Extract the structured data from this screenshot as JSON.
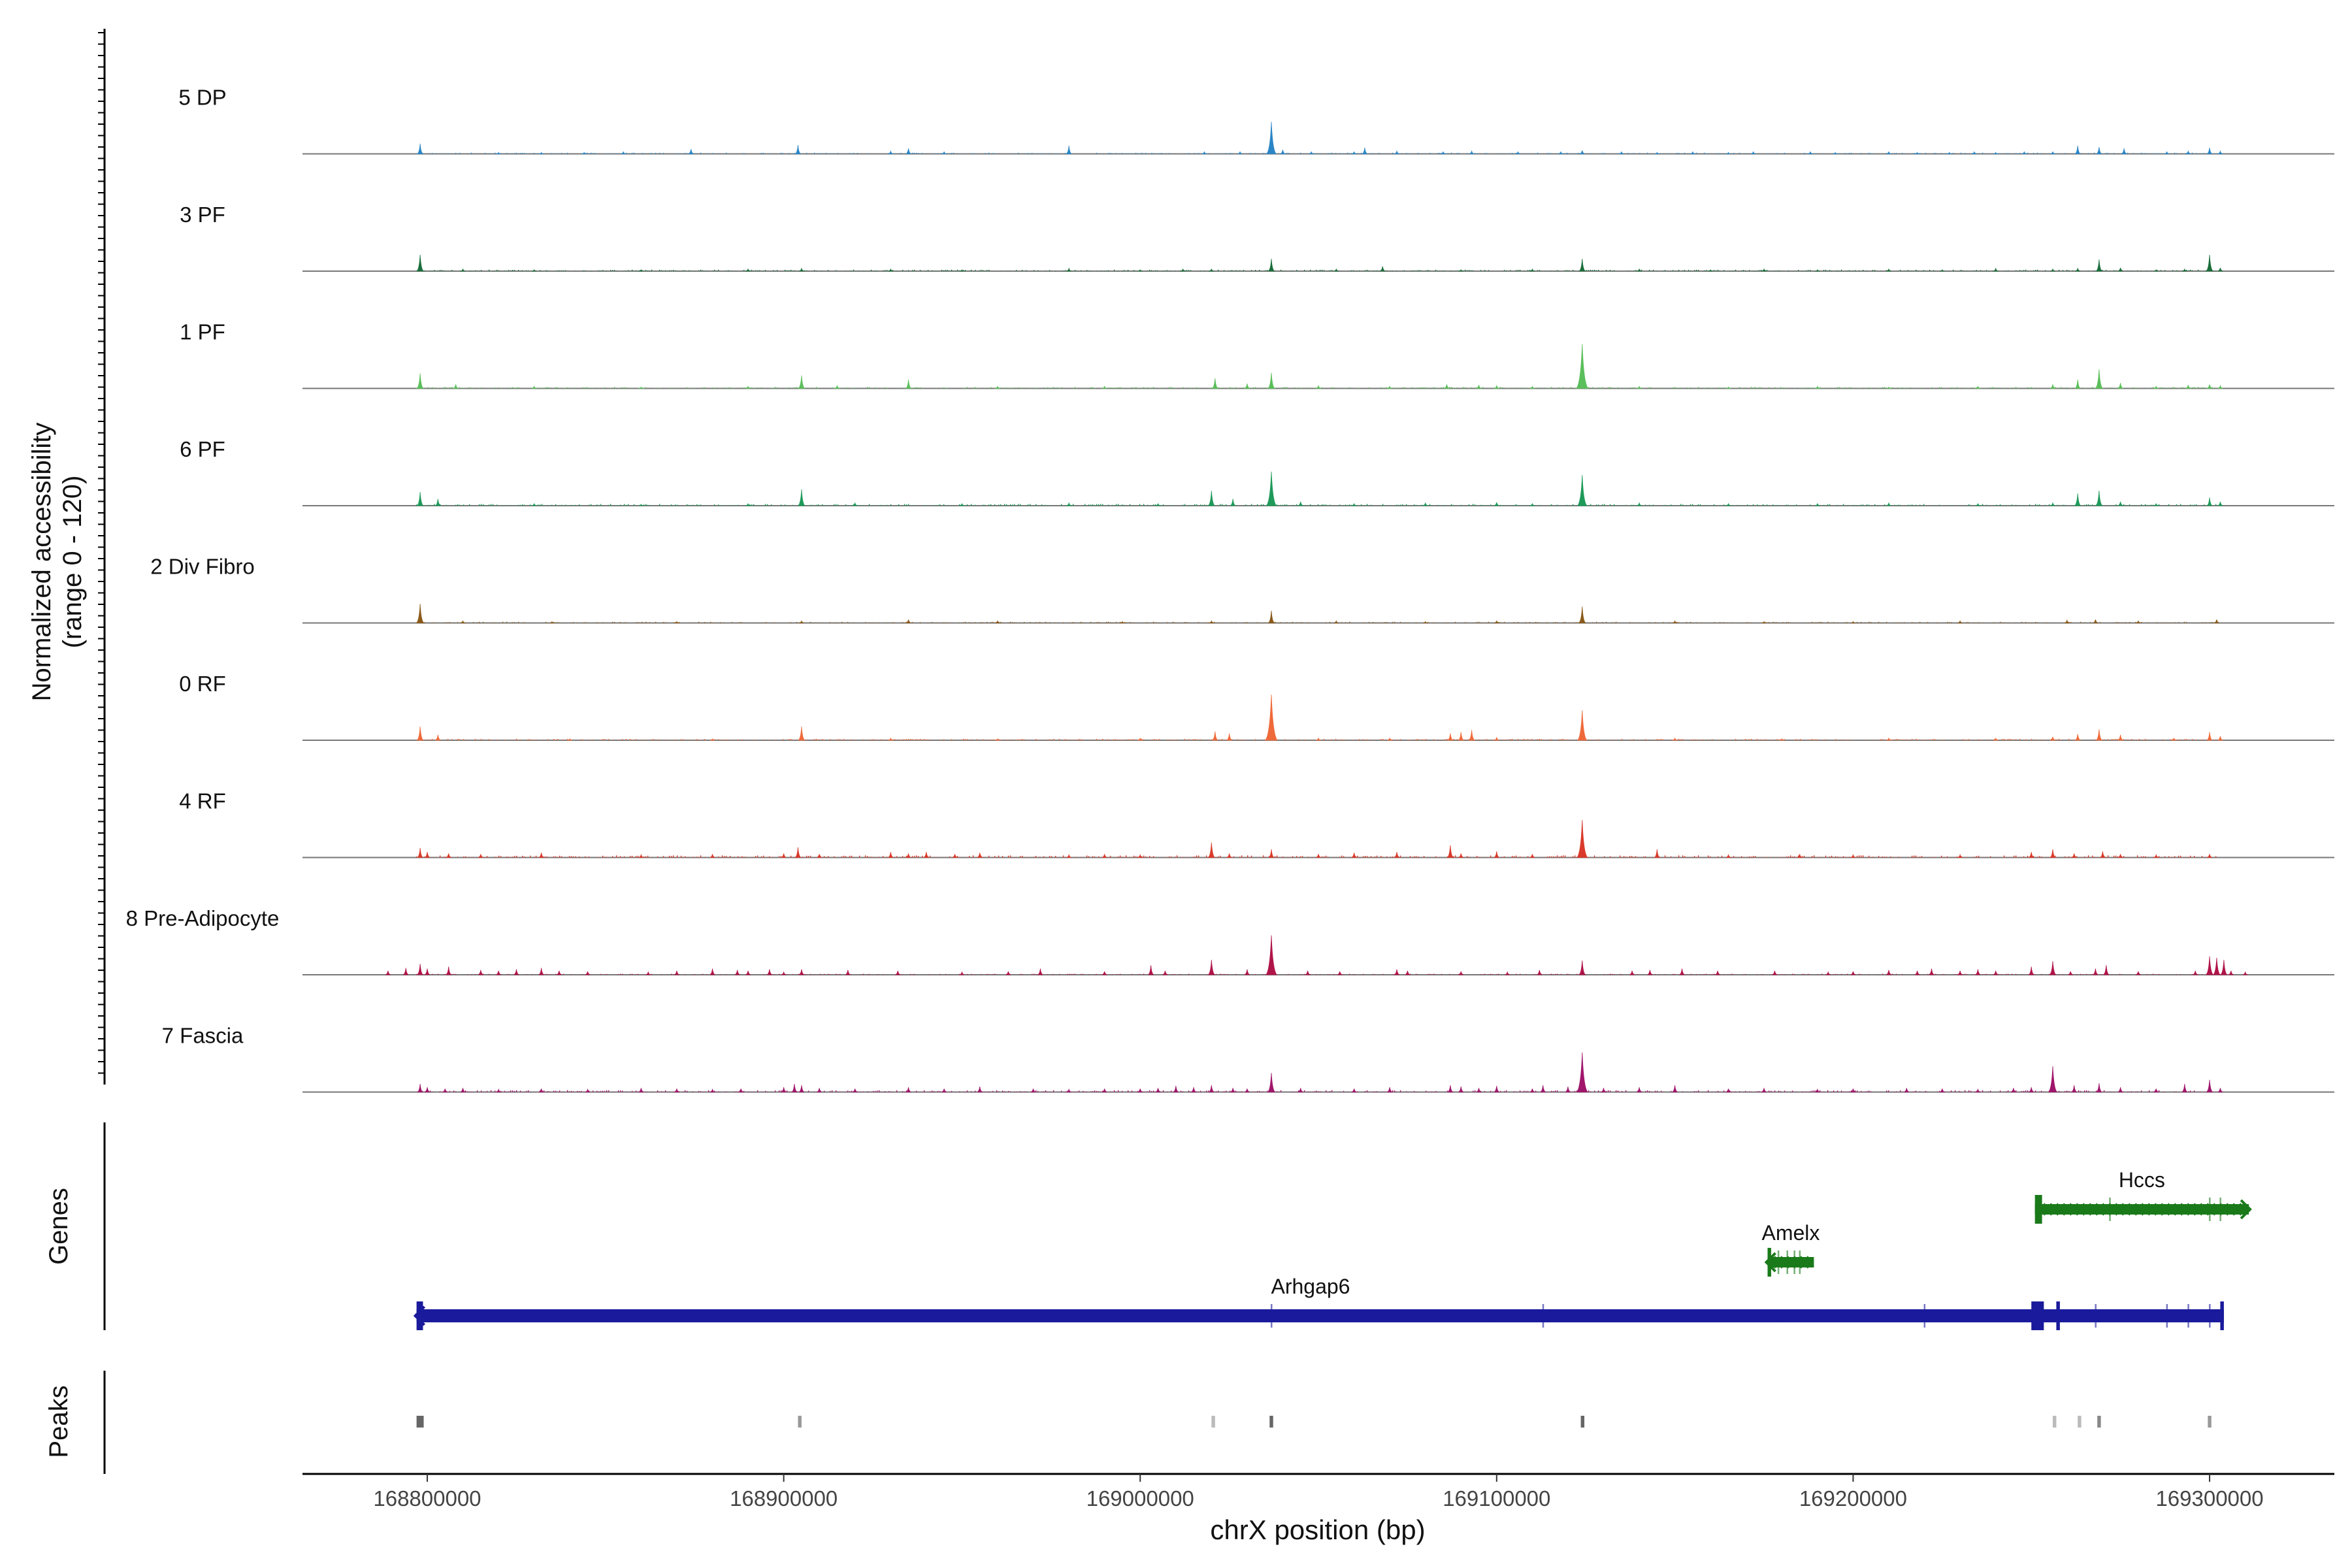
{
  "chart_data": {
    "type": "area",
    "title": "",
    "ylabel_line1": "Normalized accessibility",
    "ylabel_line2": "(range 0 - 120)",
    "xlabel": "chrX position (bp)",
    "xlim": [
      168765000,
      169335000
    ],
    "xticks": [
      168800000,
      168900000,
      169000000,
      169100000,
      169200000,
      169300000
    ],
    "xtick_labels": [
      "168800000",
      "168900000",
      "169000000",
      "169100000",
      "169200000",
      "169300000"
    ],
    "ylim": [
      0,
      120
    ],
    "data_range": [
      168797000,
      169302000
    ],
    "genes_label": "Genes",
    "peaks_label": "Peaks",
    "tracks": [
      {
        "name": "5 DP",
        "color": "#2b86c5",
        "noise": 0.8,
        "pos": [
          168798000,
          168820000,
          168832000,
          168844000,
          168855000,
          168874000,
          168904000,
          168930000,
          168935000,
          168945000,
          168980000,
          169018000,
          169028000,
          169036800,
          169040000,
          169048000,
          169060000,
          169063000,
          169072000,
          169085000,
          169093000,
          169106000,
          169118000,
          169124000,
          169135000,
          169145000,
          169155000,
          169165000,
          169172000,
          169188000,
          169195000,
          169210000,
          169218000,
          169227000,
          169234000,
          169240000,
          169248000,
          169256000,
          169263000,
          169269000,
          169276000,
          169288000,
          169294000,
          169300000,
          169303000
        ],
        "val": [
          15,
          2,
          2,
          2,
          3,
          7,
          13,
          4,
          8,
          3,
          12,
          3,
          3,
          47,
          6,
          3,
          3,
          9,
          4,
          3,
          4,
          3,
          3,
          5,
          3,
          2,
          3,
          2,
          3,
          3,
          2,
          3,
          2,
          2,
          3,
          2,
          3,
          3,
          12,
          10,
          8,
          3,
          4,
          9,
          4
        ]
      },
      {
        "name": "3 PF",
        "color": "#1b6e3b",
        "noise": 1.0,
        "pos": [
          168798000,
          168810000,
          168830000,
          168860000,
          168890000,
          168905000,
          168930000,
          168950000,
          168980000,
          169000000,
          169012000,
          169020000,
          169036800,
          169055000,
          169068000,
          169090000,
          169110000,
          169124000,
          169140000,
          169160000,
          169175000,
          169190000,
          169210000,
          169225000,
          169240000,
          169256000,
          169263000,
          169269000,
          169275000,
          169285000,
          169293000,
          169300000,
          169303000
        ],
        "val": [
          24,
          3,
          2,
          2,
          3,
          4,
          3,
          2,
          4,
          2,
          3,
          3,
          18,
          3,
          7,
          2,
          3,
          18,
          3,
          2,
          3,
          2,
          3,
          2,
          4,
          3,
          4,
          17,
          5,
          2,
          3,
          24,
          5
        ]
      },
      {
        "name": "1 PF",
        "color": "#5bbf5b",
        "noise": 1.0,
        "pos": [
          168798000,
          168808000,
          168830000,
          168860000,
          168890000,
          168905000,
          168915000,
          168935000,
          168960000,
          168990000,
          169021000,
          169030000,
          169036800,
          169050000,
          169070000,
          169086000,
          169095000,
          169100000,
          169110000,
          169124000,
          169140000,
          169165000,
          169190000,
          169210000,
          169235000,
          169256000,
          169263000,
          169269000,
          169275000,
          169285000,
          169294000,
          169300000,
          169303000
        ],
        "val": [
          22,
          6,
          3,
          2,
          3,
          19,
          4,
          13,
          3,
          3,
          15,
          7,
          23,
          4,
          3,
          6,
          5,
          4,
          3,
          65,
          3,
          2,
          3,
          2,
          3,
          6,
          13,
          28,
          8,
          3,
          5,
          6,
          4
        ]
      },
      {
        "name": "6 PF",
        "color": "#1f9a5a",
        "noise": 1.2,
        "pos": [
          168798000,
          168803000,
          168830000,
          168860000,
          168890000,
          168905000,
          168920000,
          168950000,
          168980000,
          169005000,
          169020000,
          169026000,
          169036800,
          169045000,
          169060000,
          169080000,
          169100000,
          169110000,
          169124000,
          169140000,
          169165000,
          169190000,
          169210000,
          169235000,
          169256000,
          169263000,
          169269000,
          169275000,
          169285000,
          169300000,
          169303000
        ],
        "val": [
          20,
          10,
          3,
          2,
          3,
          24,
          4,
          3,
          4,
          3,
          22,
          10,
          50,
          6,
          3,
          4,
          5,
          3,
          45,
          4,
          3,
          3,
          4,
          3,
          4,
          18,
          22,
          6,
          3,
          12,
          6
        ]
      },
      {
        "name": "2 Div Fibro",
        "color": "#8b5a1a",
        "noise": 0.8,
        "pos": [
          168798000,
          168810000,
          168835000,
          168870000,
          168905000,
          168935000,
          168960000,
          168995000,
          169020000,
          169036800,
          169055000,
          169080000,
          169100000,
          169124000,
          169150000,
          169175000,
          169200000,
          169230000,
          169260000,
          169268000,
          169280000,
          169302000
        ],
        "val": [
          28,
          3,
          2,
          2,
          3,
          5,
          3,
          2,
          3,
          18,
          3,
          2,
          3,
          24,
          3,
          2,
          2,
          3,
          4,
          5,
          3,
          5
        ]
      },
      {
        "name": "0 RF",
        "color": "#ef6a3a",
        "noise": 1.0,
        "pos": [
          168798000,
          168803000,
          168840000,
          168880000,
          168905000,
          168930000,
          168960000,
          169000000,
          169021000,
          169025000,
          169036800,
          169050000,
          169070000,
          169087000,
          169090000,
          169093000,
          169100000,
          169124000,
          169150000,
          169180000,
          169210000,
          169240000,
          169256000,
          169263000,
          169269000,
          169275000,
          169290000,
          169300000,
          169303000
        ],
        "val": [
          20,
          8,
          2,
          2,
          20,
          3,
          2,
          3,
          13,
          10,
          67,
          3,
          3,
          10,
          12,
          15,
          4,
          44,
          3,
          2,
          3,
          3,
          5,
          9,
          16,
          8,
          3,
          12,
          6
        ]
      },
      {
        "name": "4 RF",
        "color": "#d93a2b",
        "noise": 1.5,
        "pos": [
          168798000,
          168800000,
          168806000,
          168815000,
          168832000,
          168860000,
          168880000,
          168900000,
          168904000,
          168910000,
          168930000,
          168935000,
          168940000,
          168948000,
          168955000,
          168980000,
          168990000,
          169000000,
          169020000,
          169025000,
          169036800,
          169050000,
          169060000,
          169072000,
          169087000,
          169090000,
          169100000,
          169110000,
          169124000,
          169145000,
          169165000,
          169185000,
          169200000,
          169230000,
          169250000,
          169256000,
          169262000,
          169270000,
          169275000,
          169285000,
          169300000
        ],
        "val": [
          14,
          8,
          6,
          5,
          7,
          4,
          5,
          6,
          15,
          5,
          8,
          6,
          8,
          5,
          7,
          4,
          5,
          4,
          22,
          6,
          12,
          5,
          7,
          8,
          18,
          6,
          9,
          5,
          55,
          12,
          4,
          5,
          4,
          4,
          8,
          12,
          6,
          9,
          5,
          4,
          5
        ]
      },
      {
        "name": "8 Pre-Adipocyte",
        "color": "#b0154a",
        "noise": 0.7,
        "pos": [
          168789000,
          168794000,
          168798000,
          168800000,
          168806000,
          168815000,
          168820000,
          168825000,
          168832000,
          168837000,
          168845000,
          168862000,
          168870000,
          168880000,
          168887000,
          168890000,
          168896000,
          168900000,
          168905000,
          168918000,
          168932000,
          168950000,
          168963000,
          168972000,
          168990000,
          169003000,
          169007000,
          169020000,
          169030000,
          169036800,
          169047000,
          169056000,
          169072000,
          169075000,
          169090000,
          169103000,
          169112000,
          169124000,
          169138000,
          169143000,
          169152000,
          169162000,
          169178000,
          169193000,
          169200000,
          169210000,
          169218000,
          169222000,
          169230000,
          169235000,
          169240000,
          169250000,
          169256000,
          169261000,
          169268000,
          169271000,
          169280000,
          169296000,
          169300000,
          169302000,
          169304000,
          169306000,
          169310000
        ],
        "val": [
          6,
          10,
          16,
          9,
          12,
          7,
          6,
          8,
          10,
          6,
          5,
          4,
          6,
          9,
          7,
          6,
          8,
          4,
          8,
          7,
          6,
          4,
          5,
          9,
          5,
          14,
          6,
          22,
          8,
          58,
          6,
          5,
          8,
          6,
          5,
          4,
          7,
          21,
          6,
          7,
          9,
          6,
          6,
          4,
          5,
          7,
          6,
          9,
          6,
          8,
          6,
          12,
          20,
          5,
          9,
          14,
          5,
          6,
          27,
          25,
          22,
          6,
          4
        ]
      },
      {
        "name": "7 Fascia",
        "color": "#a0166b",
        "noise": 1.3,
        "pos": [
          168798000,
          168800000,
          168805000,
          168810000,
          168820000,
          168832000,
          168845000,
          168860000,
          168870000,
          168880000,
          168888000,
          168900000,
          168903000,
          168905000,
          168910000,
          168920000,
          168935000,
          168945000,
          168955000,
          168970000,
          168980000,
          168990000,
          169000000,
          169005000,
          169010000,
          169015000,
          169020000,
          169026000,
          169030000,
          169036800,
          169045000,
          169060000,
          169070000,
          169087000,
          169090000,
          169095000,
          169100000,
          169110000,
          169113000,
          169120000,
          169124000,
          169130000,
          169140000,
          169150000,
          169165000,
          169175000,
          169190000,
          169200000,
          169215000,
          169225000,
          169235000,
          169245000,
          169250000,
          169256000,
          169262000,
          169269000,
          169275000,
          169285000,
          169293000,
          169300000,
          169303000
        ],
        "val": [
          12,
          7,
          5,
          6,
          4,
          5,
          4,
          6,
          5,
          4,
          5,
          7,
          12,
          10,
          6,
          5,
          7,
          5,
          8,
          5,
          4,
          5,
          5,
          6,
          9,
          7,
          10,
          6,
          5,
          28,
          6,
          5,
          7,
          10,
          8,
          6,
          9,
          5,
          10,
          8,
          58,
          6,
          7,
          10,
          5,
          6,
          4,
          5,
          6,
          5,
          4,
          6,
          7,
          38,
          10,
          13,
          7,
          5,
          12,
          18,
          6
        ]
      }
    ],
    "genes": [
      {
        "name": "Arhgap6",
        "color": "#1a1a9c",
        "start": 168797000,
        "end": 169304000,
        "strand": "-",
        "row": 2,
        "exons": [
          [
            168797000,
            168798800
          ],
          [
            169250000,
            169253500
          ],
          [
            169257000,
            169258000
          ],
          [
            169303000,
            169304000
          ]
        ],
        "small_exons": [
          169036800,
          169113000,
          169220000,
          169268000,
          169288000,
          169294000,
          169300000
        ]
      },
      {
        "name": "Amelx",
        "color": "#1a7a1a",
        "start": 169176000,
        "end": 169189000,
        "strand": "-",
        "row": 1,
        "exons": [
          [
            169176000,
            169177000
          ]
        ],
        "small_exons": [
          169179000,
          169181500,
          169183500,
          169185000
        ]
      },
      {
        "name": "Hccs",
        "color": "#1a7a1a",
        "start": 169251000,
        "end": 169311000,
        "strand": "+",
        "row": 0,
        "exons": [
          [
            169251000,
            169253000
          ]
        ],
        "small_exons": [
          169272000,
          169300000,
          169303000
        ]
      }
    ],
    "peaks": [
      {
        "start": 168797000,
        "end": 168799000,
        "shade": "#666666"
      },
      {
        "start": 168904000,
        "end": 168905000,
        "shade": "#999999"
      },
      {
        "start": 169020000,
        "end": 169021000,
        "shade": "#bbbbbb"
      },
      {
        "start": 169036300,
        "end": 169037300,
        "shade": "#666666"
      },
      {
        "start": 169123600,
        "end": 169124600,
        "shade": "#666666"
      },
      {
        "start": 169256000,
        "end": 169257000,
        "shade": "#bbbbbb"
      },
      {
        "start": 169263000,
        "end": 169264000,
        "shade": "#bbbbbb"
      },
      {
        "start": 169268500,
        "end": 169269500,
        "shade": "#888888"
      },
      {
        "start": 169299500,
        "end": 169300500,
        "shade": "#999999"
      }
    ]
  }
}
